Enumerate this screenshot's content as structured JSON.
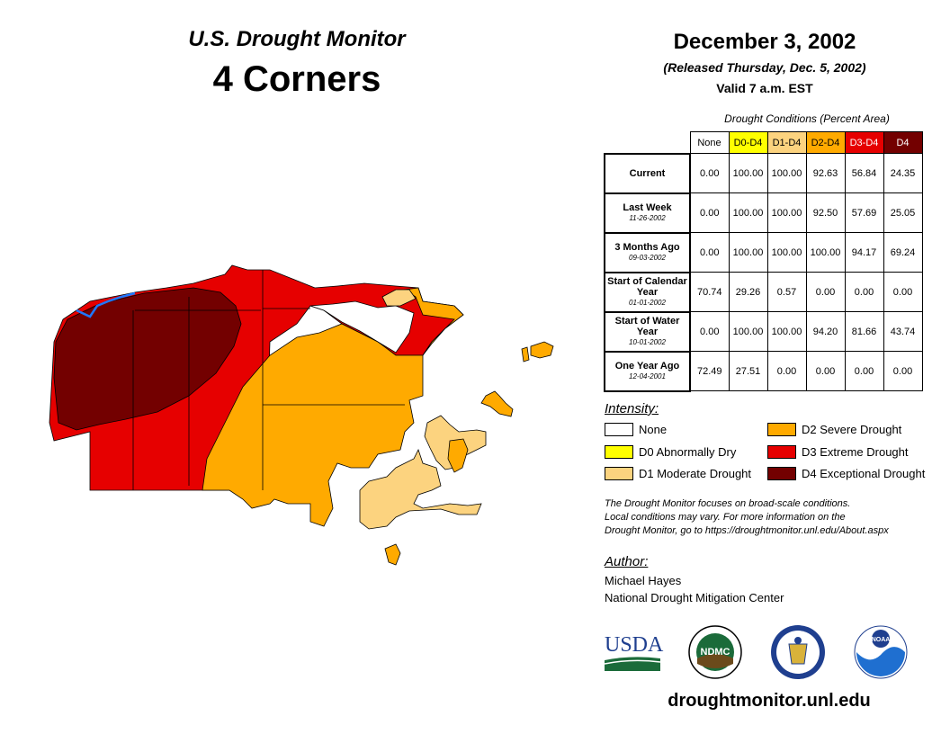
{
  "header": {
    "title": "U.S. Drought Monitor",
    "region": "4 Corners",
    "date": "December 3, 2002",
    "released": "(Released Thursday, Dec. 5, 2002)",
    "valid": "Valid 7 a.m. EST"
  },
  "table": {
    "caption": "Drought Conditions (Percent Area)",
    "columns": [
      {
        "label": "None",
        "color": "#ffffff",
        "text_color": "#000000"
      },
      {
        "label": "D0-D4",
        "color": "#ffff00",
        "text_color": "#000000"
      },
      {
        "label": "D1-D4",
        "color": "#fcd37f",
        "text_color": "#000000"
      },
      {
        "label": "D2-D4",
        "color": "#ffaa00",
        "text_color": "#000000"
      },
      {
        "label": "D3-D4",
        "color": "#e60000",
        "text_color": "#ffffff"
      },
      {
        "label": "D4",
        "color": "#730000",
        "text_color": "#ffffff"
      }
    ],
    "rows": [
      {
        "label": "Current",
        "date": "",
        "values": [
          "0.00",
          "100.00",
          "100.00",
          "92.63",
          "56.84",
          "24.35"
        ]
      },
      {
        "label": "Last Week",
        "date": "11-26-2002",
        "values": [
          "0.00",
          "100.00",
          "100.00",
          "92.50",
          "57.69",
          "25.05"
        ]
      },
      {
        "label": "3 Months Ago",
        "date": "09-03-2002",
        "values": [
          "0.00",
          "100.00",
          "100.00",
          "100.00",
          "94.17",
          "69.24"
        ]
      },
      {
        "label": "Start of Calendar Year",
        "date": "01-01-2002",
        "values": [
          "70.74",
          "29.26",
          "0.57",
          "0.00",
          "0.00",
          "0.00"
        ]
      },
      {
        "label": "Start of Water Year",
        "date": "10-01-2002",
        "values": [
          "0.00",
          "100.00",
          "100.00",
          "94.20",
          "81.66",
          "43.74"
        ]
      },
      {
        "label": "One Year Ago",
        "date": "12-04-2001",
        "values": [
          "72.49",
          "27.51",
          "0.00",
          "0.00",
          "0.00",
          "0.00"
        ]
      }
    ]
  },
  "legend": {
    "heading": "Intensity:",
    "items": [
      {
        "label": "None",
        "color": "#ffffff"
      },
      {
        "label": "D0 Abnormally Dry",
        "color": "#ffff00"
      },
      {
        "label": "D1 Moderate Drought",
        "color": "#fcd37f"
      },
      {
        "label": "D2 Severe Drought",
        "color": "#ffaa00"
      },
      {
        "label": "D3 Extreme Drought",
        "color": "#e60000"
      },
      {
        "label": "D4 Exceptional Drought",
        "color": "#730000"
      }
    ]
  },
  "note": {
    "line1": "The Drought Monitor focuses on broad-scale conditions.",
    "line2": "Local conditions may vary. For more information on the",
    "line3": "Drought Monitor, go to https://droughtmonitor.unl.edu/About.aspx"
  },
  "author": {
    "heading": "Author:",
    "name": "Michael Hayes",
    "org": "National Drought Mitigation Center"
  },
  "logos": {
    "usda": "USDA",
    "ndmc": "NDMC",
    "noaa": "NOAA"
  },
  "footer": {
    "url": "droughtmonitor.unl.edu"
  }
}
